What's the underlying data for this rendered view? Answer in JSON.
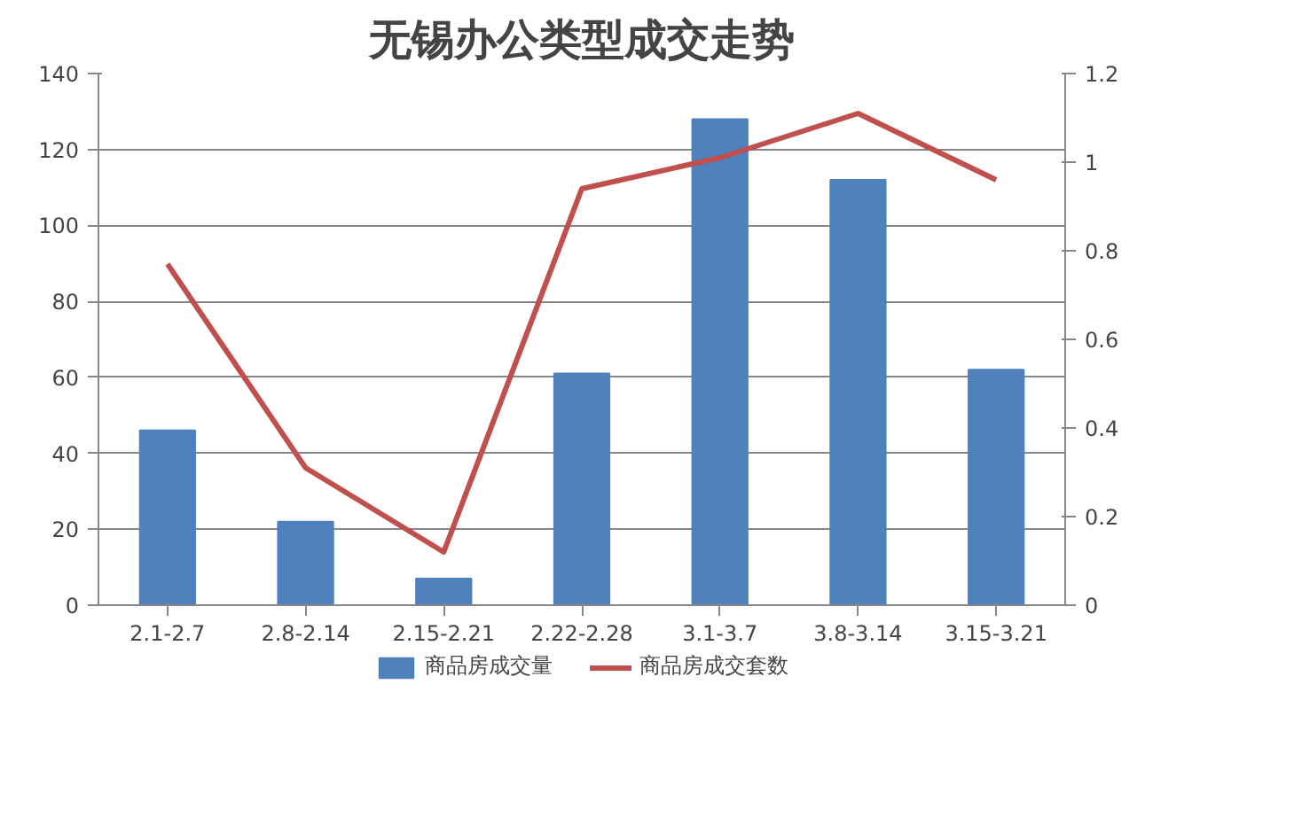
{
  "chart_data": {
    "type": "bar",
    "title": "无锡办公类型成交走势",
    "categories": [
      "2.1-2.7",
      "2.8-2.14",
      "2.15-2.21",
      "2.22-2.28",
      "3.1-3.7",
      "3.8-3.14",
      "3.15-3.21"
    ],
    "series": [
      {
        "name": "商品房成交量",
        "color": "#4f81bd",
        "values": [
          46,
          22,
          7,
          61,
          128,
          112,
          62
        ]
      },
      {
        "name": "商品房成交套数",
        "type": "line",
        "axis": "y2",
        "color": "#c0504d",
        "values": [
          0.77,
          0.31,
          0.12,
          0.94,
          1.01,
          1.11,
          0.96
        ]
      }
    ],
    "ylim": [
      0,
      140
    ],
    "yticks": [
      0,
      20,
      40,
      60,
      80,
      100,
      120,
      140
    ],
    "y2lim": [
      0,
      1.2
    ],
    "y2ticks": [
      0,
      0.2,
      0.4,
      0.6,
      0.8,
      1,
      1.2
    ],
    "grid": "y",
    "legend": "bottom"
  }
}
